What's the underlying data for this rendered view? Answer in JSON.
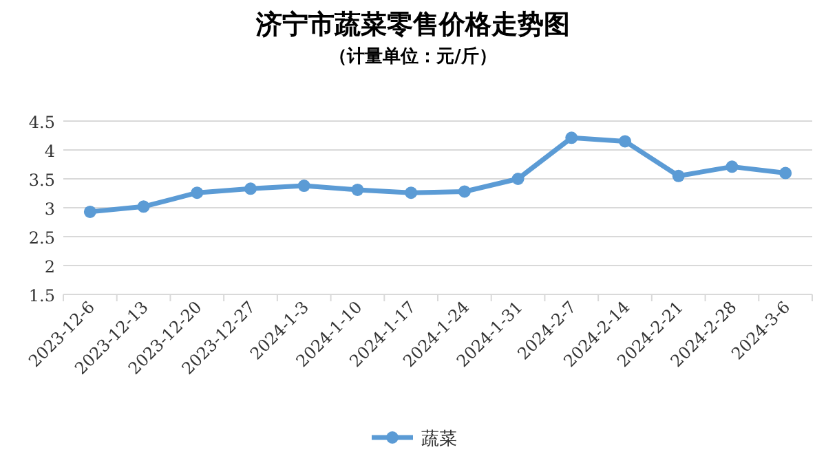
{
  "chart_data": {
    "type": "line",
    "title": "济宁市蔬菜零售价格走势图",
    "subtitle": "（计量单位：元/斤）",
    "categories": [
      "2023-12-6",
      "2023-12-13",
      "2023-12-20",
      "2023-12-27",
      "2024-1-3",
      "2024-1-10",
      "2024-1-17",
      "2024-1-24",
      "2024-1-31",
      "2024-2-7",
      "2024-2-14",
      "2024-2-21",
      "2024-2-28",
      "2024-3-6"
    ],
    "series": [
      {
        "name": "蔬菜",
        "color": "#5b9bd5",
        "values": [
          2.93,
          3.02,
          3.26,
          3.33,
          3.38,
          3.31,
          3.26,
          3.28,
          3.5,
          4.21,
          4.15,
          3.55,
          3.71,
          3.6
        ]
      }
    ],
    "ylim": [
      1.5,
      4.5
    ],
    "yticks": [
      1.5,
      2,
      2.5,
      3,
      3.5,
      4,
      4.5
    ],
    "grid": "y",
    "legend": "bottom",
    "marker": "circle",
    "line_style": "solid"
  }
}
